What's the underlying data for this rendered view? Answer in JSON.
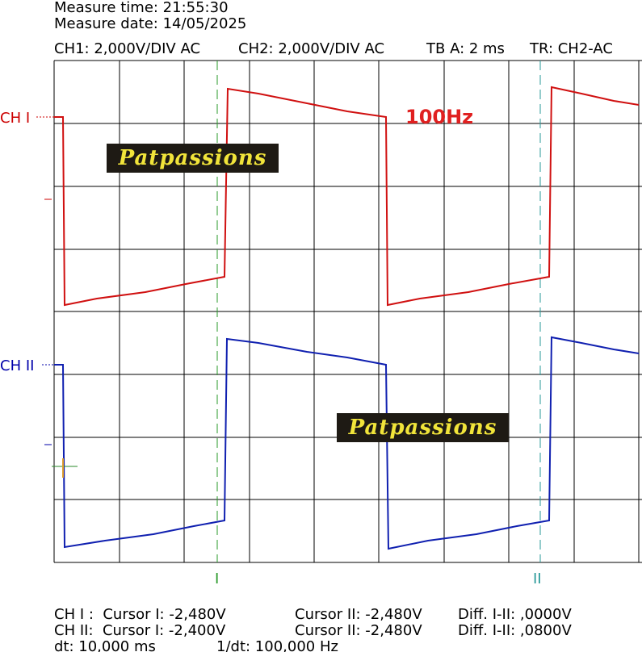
{
  "header": {
    "measure_time": "Measure time: 21:55:30",
    "measure_date": "Measure date: 14/05/2025",
    "settings": [
      "CH1: 2,000V/DIV AC",
      "CH2: 2,000V/DIV AC",
      "TB A: 2 ms",
      "TR: CH2-AC"
    ]
  },
  "channels": [
    "CH I",
    "CH II"
  ],
  "annotation": "100Hz",
  "watermarks": [
    "Patpassions",
    "Patpassions"
  ],
  "cursors": [
    "I",
    "II"
  ],
  "footer": {
    "rows": [
      [
        "CH I :  Cursor I: -2,480V",
        "Cursor II: -2,480V",
        "Diff. I-II: ,0000V"
      ],
      [
        "CH II:  Cursor I: -2,400V",
        "Cursor II: -2,480V",
        "Diff. I-II: ,0800V"
      ],
      [
        "dt: 10,000 ms",
        "1/dt: 100,000 Hz"
      ]
    ]
  }
}
